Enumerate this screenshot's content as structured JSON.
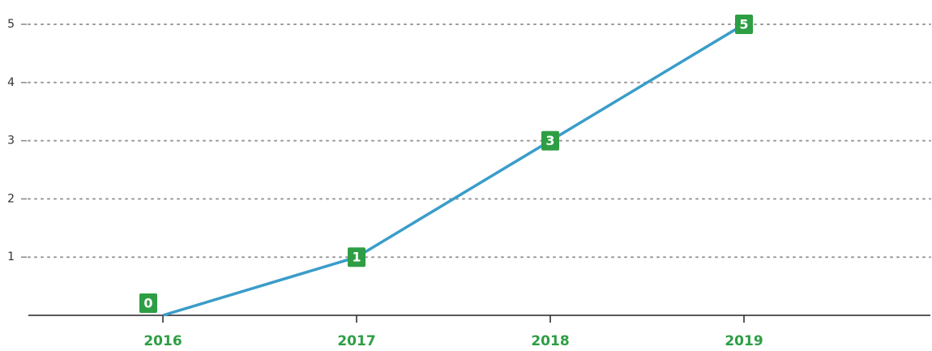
{
  "chart_data": {
    "type": "line",
    "categories": [
      "2016",
      "2017",
      "2018",
      "2019"
    ],
    "values": [
      0,
      1,
      3,
      5
    ],
    "color": "#3a9dc9",
    "label_color": "#2e9e44",
    "ylim": [
      0,
      5
    ],
    "yticks": [
      1,
      2,
      3,
      4,
      5
    ],
    "grid": true
  }
}
